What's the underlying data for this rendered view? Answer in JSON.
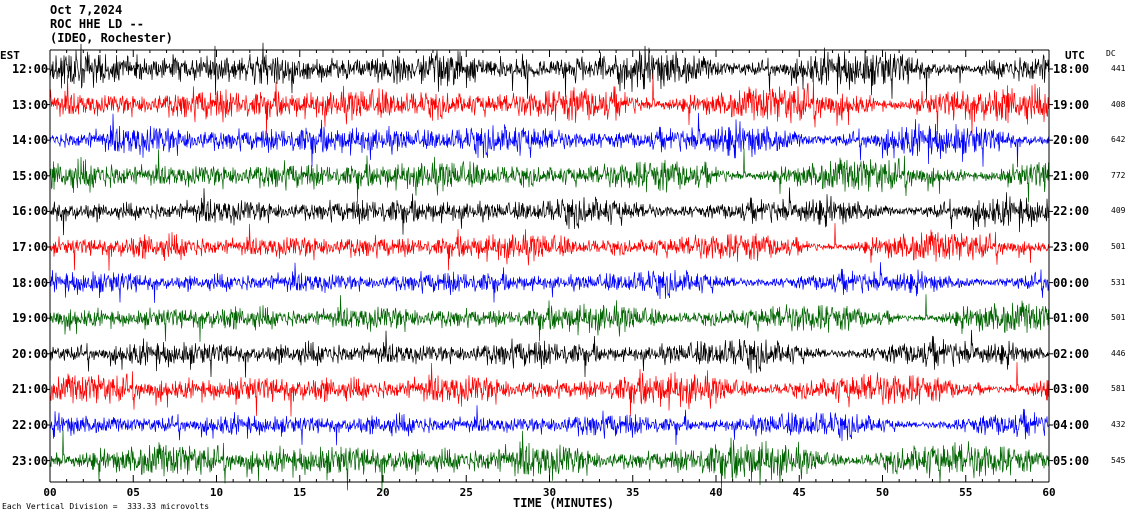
{
  "header": {
    "date": "Oct 7,2024",
    "station": "ROC HHE LD --",
    "location": "(IDEO, Rochester)"
  },
  "left_column_label": "EST",
  "right_column_label": "UTC",
  "dc_column_label": "DC",
  "xlabel": "TIME (MINUTES)",
  "footnote": "Each Vertical Division =  333.33 microvolts",
  "colors": {
    "black": "#000000",
    "red": "#ff0000",
    "blue": "#0000ff",
    "green": "#006400",
    "background": "#ffffff"
  },
  "chart_data": {
    "type": "line",
    "title": "ROC HHE LD -- (IDEO, Rochester) Oct 7,2024",
    "xlabel": "TIME (MINUTES)",
    "ylabel": "",
    "xlim": [
      0,
      60
    ],
    "x_ticks": [
      "00",
      "05",
      "10",
      "15",
      "20",
      "25",
      "30",
      "35",
      "40",
      "45",
      "50",
      "55",
      "60"
    ],
    "color_cycle": [
      "black",
      "red",
      "blue",
      "green"
    ],
    "series": [
      {
        "est": "12:00",
        "utc": "18:00",
        "dc": "441",
        "color": "black",
        "amplitude": 0.9
      },
      {
        "est": "13:00",
        "utc": "19:00",
        "dc": "408",
        "color": "red",
        "amplitude": 0.9
      },
      {
        "est": "14:00",
        "utc": "20:00",
        "dc": "642",
        "color": "blue",
        "amplitude": 0.8
      },
      {
        "est": "15:00",
        "utc": "21:00",
        "dc": "772",
        "color": "green",
        "amplitude": 0.8
      },
      {
        "est": "16:00",
        "utc": "22:00",
        "dc": "409",
        "color": "black",
        "amplitude": 0.7
      },
      {
        "est": "17:00",
        "utc": "23:00",
        "dc": "501",
        "color": "red",
        "amplitude": 0.7
      },
      {
        "est": "18:00",
        "utc": "00:00",
        "dc": "531",
        "color": "blue",
        "amplitude": 0.6
      },
      {
        "est": "19:00",
        "utc": "01:00",
        "dc": "501",
        "color": "green",
        "amplitude": 0.7
      },
      {
        "est": "20:00",
        "utc": "02:00",
        "dc": "446",
        "color": "black",
        "amplitude": 0.7
      },
      {
        "est": "21:00",
        "utc": "03:00",
        "dc": "581",
        "color": "red",
        "amplitude": 0.8
      },
      {
        "est": "22:00",
        "utc": "04:00",
        "dc": "432",
        "color": "blue",
        "amplitude": 0.6
      },
      {
        "est": "23:00",
        "utc": "05:00",
        "dc": "545",
        "color": "green",
        "amplitude": 0.9
      }
    ]
  }
}
